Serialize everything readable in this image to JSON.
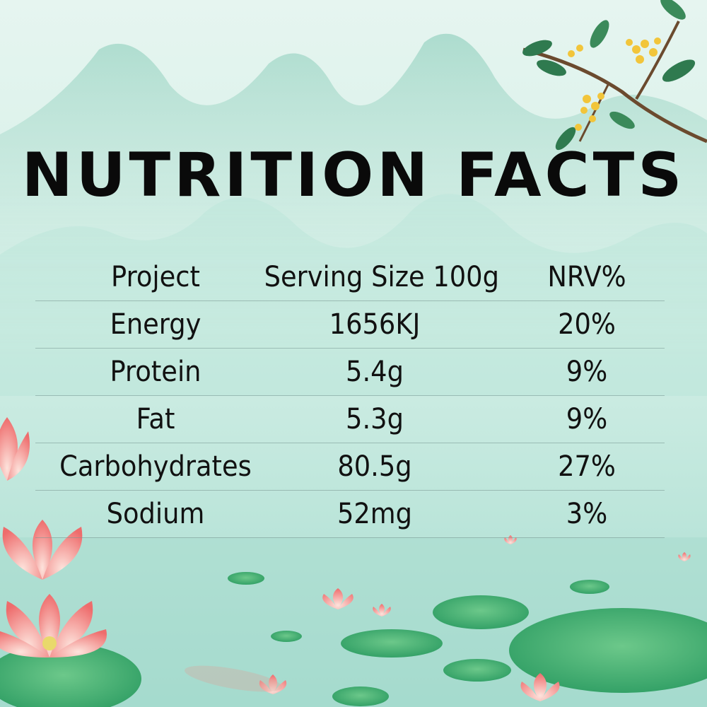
{
  "title": "NUTRITION FACTS",
  "table": {
    "headers": [
      "Project",
      "Serving Size 100g",
      "NRV%"
    ],
    "rows": [
      {
        "item": "Energy",
        "amount": "1656KJ",
        "nrv": "20%"
      },
      {
        "item": "Protein",
        "amount": "5.4g",
        "nrv": "9%"
      },
      {
        "item": "Fat",
        "amount": "5.3g",
        "nrv": "9%"
      },
      {
        "item": "Carbohydrates",
        "amount": "80.5g",
        "nrv": "27%"
      },
      {
        "item": "Sodium",
        "amount": "52mg",
        "nrv": "3%"
      }
    ]
  },
  "colors": {
    "background_top": "#d9f1ea",
    "background_bottom": "#9fd8cc",
    "mountain": "#a9dccf",
    "lotus": "#f07a78",
    "lily_pad": "#3fae6e",
    "osmanthus": "#f2c53a"
  }
}
